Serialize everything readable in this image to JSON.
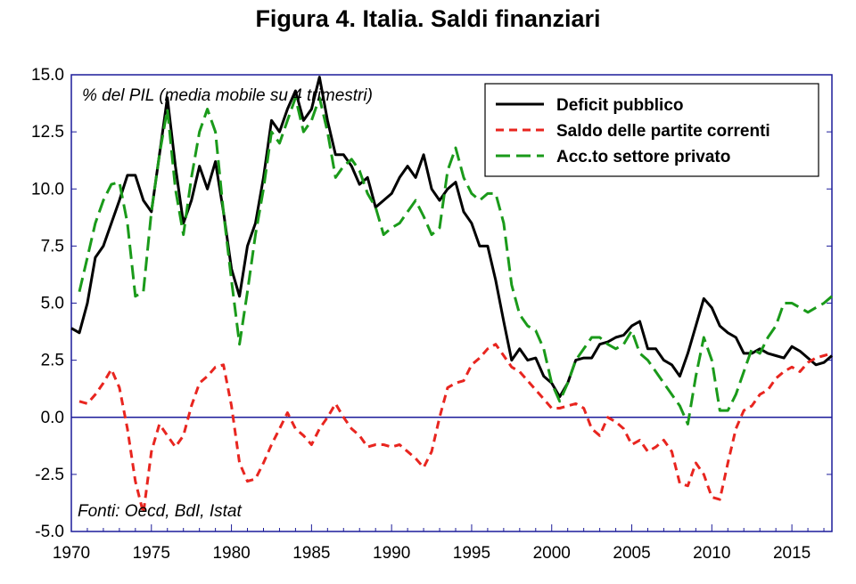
{
  "title": "Figura 4. Italia. Saldi finanziari",
  "note": "% del PIL (media mobile su 4 trimestri)",
  "source": "Fonti: Oecd, BdI, Istat",
  "colors": {
    "deficit": "#000000",
    "current_account": "#e8251f",
    "private": "#1a9a1a",
    "zero_line": "#1c1c9a",
    "frame": "#1c1c9a"
  },
  "chart_data": {
    "type": "line",
    "title": "Figura 4. Italia. Saldi finanziari",
    "xlabel": "",
    "ylabel": "% del PIL (media mobile su 4 trimestri)",
    "xlim": [
      1970,
      2017.5
    ],
    "ylim": [
      -5.0,
      15.0
    ],
    "x_ticks": [
      "1970",
      "1975",
      "1980",
      "1985",
      "1990",
      "1995",
      "2000",
      "2005",
      "2010",
      "2015"
    ],
    "y_ticks": [
      "15.0",
      "12.5",
      "10.0",
      "7.5",
      "5.0",
      "2.5",
      "0.0",
      "-2.5",
      "-5.0"
    ],
    "legend_position": "top-right",
    "grid": false,
    "series": [
      {
        "name": "Deficit pubblico",
        "style": "solid",
        "x": [
          1970.0,
          1970.5,
          1971.0,
          1971.5,
          1972.0,
          1972.5,
          1973.0,
          1973.5,
          1974.0,
          1974.5,
          1975.0,
          1975.5,
          1976.0,
          1976.5,
          1977.0,
          1977.5,
          1978.0,
          1978.5,
          1979.0,
          1979.5,
          1980.0,
          1980.5,
          1981.0,
          1981.5,
          1982.0,
          1982.5,
          1983.0,
          1983.5,
          1984.0,
          1984.5,
          1985.0,
          1985.5,
          1986.0,
          1986.5,
          1987.0,
          1987.5,
          1988.0,
          1988.5,
          1989.0,
          1989.5,
          1990.0,
          1990.5,
          1991.0,
          1991.5,
          1992.0,
          1992.5,
          1993.0,
          1993.5,
          1994.0,
          1994.5,
          1995.0,
          1995.5,
          1996.0,
          1996.5,
          1997.0,
          1997.5,
          1998.0,
          1998.5,
          1999.0,
          1999.5,
          2000.0,
          2000.5,
          2001.0,
          2001.5,
          2002.0,
          2002.5,
          2003.0,
          2003.5,
          2004.0,
          2004.5,
          2005.0,
          2005.5,
          2006.0,
          2006.5,
          2007.0,
          2007.5,
          2008.0,
          2008.5,
          2009.0,
          2009.5,
          2010.0,
          2010.5,
          2011.0,
          2011.5,
          2012.0,
          2012.5,
          2013.0,
          2013.5,
          2014.0,
          2014.5,
          2015.0,
          2015.5,
          2016.0,
          2016.5,
          2017.0,
          2017.5
        ],
        "y": [
          3.9,
          3.7,
          5.0,
          7.0,
          7.5,
          8.5,
          9.5,
          10.6,
          10.6,
          9.5,
          9.0,
          11.5,
          14.0,
          11.0,
          8.5,
          9.5,
          11.0,
          10.0,
          11.2,
          9.0,
          6.5,
          5.3,
          7.5,
          8.5,
          10.5,
          13.0,
          12.5,
          13.5,
          14.3,
          13.0,
          13.5,
          14.9,
          13.0,
          11.5,
          11.5,
          11.0,
          10.2,
          10.5,
          9.2,
          9.5,
          9.8,
          10.5,
          11.0,
          10.5,
          11.5,
          10.0,
          9.5,
          10.0,
          10.3,
          9.0,
          8.5,
          7.5,
          7.5,
          6.0,
          4.2,
          2.5,
          3.0,
          2.5,
          2.6,
          1.8,
          1.5,
          0.9,
          1.5,
          2.5,
          2.6,
          2.6,
          3.2,
          3.3,
          3.5,
          3.6,
          4.0,
          4.2,
          3.0,
          3.0,
          2.5,
          2.3,
          1.8,
          2.8,
          4.0,
          5.2,
          4.8,
          4.0,
          3.7,
          3.5,
          2.8,
          2.8,
          3.0,
          2.8,
          2.7,
          2.6,
          3.1,
          2.9,
          2.6,
          2.3,
          2.4,
          2.7
        ]
      },
      {
        "name": "Saldo delle partite correnti",
        "style": "dash",
        "x": [
          1970.5,
          1971.0,
          1971.5,
          1972.0,
          1972.5,
          1973.0,
          1973.5,
          1974.0,
          1974.5,
          1975.0,
          1975.5,
          1976.0,
          1976.5,
          1977.0,
          1977.5,
          1978.0,
          1978.5,
          1979.0,
          1979.5,
          1980.0,
          1980.5,
          1981.0,
          1981.5,
          1982.0,
          1982.5,
          1983.0,
          1983.5,
          1984.0,
          1984.5,
          1985.0,
          1985.5,
          1986.0,
          1986.5,
          1987.0,
          1987.5,
          1988.0,
          1988.5,
          1989.0,
          1989.5,
          1990.0,
          1990.5,
          1991.0,
          1991.5,
          1992.0,
          1992.5,
          1993.0,
          1993.5,
          1994.0,
          1994.5,
          1995.0,
          1995.5,
          1996.0,
          1996.5,
          1997.0,
          1997.5,
          1998.0,
          1998.5,
          1999.0,
          1999.5,
          2000.0,
          2000.5,
          2001.0,
          2001.5,
          2002.0,
          2002.5,
          2003.0,
          2003.5,
          2004.0,
          2004.5,
          2005.0,
          2005.5,
          2006.0,
          2006.5,
          2007.0,
          2007.5,
          2008.0,
          2008.5,
          2009.0,
          2009.5,
          2010.0,
          2010.5,
          2011.0,
          2011.5,
          2012.0,
          2012.5,
          2013.0,
          2013.5,
          2014.0,
          2014.5,
          2015.0,
          2015.5,
          2016.0,
          2016.5,
          2017.0,
          2017.5
        ],
        "y": [
          0.7,
          0.6,
          1.0,
          1.5,
          2.1,
          1.3,
          -0.5,
          -2.8,
          -4.2,
          -1.5,
          -0.3,
          -0.8,
          -1.3,
          -0.8,
          0.5,
          1.5,
          1.8,
          2.2,
          2.3,
          0.5,
          -2.0,
          -2.8,
          -2.7,
          -2.0,
          -1.2,
          -0.5,
          0.2,
          -0.5,
          -0.8,
          -1.2,
          -0.5,
          0.0,
          0.6,
          0.0,
          -0.5,
          -0.8,
          -1.3,
          -1.2,
          -1.2,
          -1.3,
          -1.2,
          -1.5,
          -1.8,
          -2.2,
          -1.5,
          0.0,
          1.3,
          1.5,
          1.6,
          2.3,
          2.6,
          3.0,
          3.2,
          2.7,
          2.2,
          2.0,
          1.6,
          1.2,
          0.8,
          0.4,
          0.4,
          0.5,
          0.6,
          0.4,
          -0.5,
          -0.8,
          0.0,
          -0.2,
          -0.5,
          -1.2,
          -1.0,
          -1.5,
          -1.3,
          -1.0,
          -1.5,
          -2.9,
          -3.0,
          -2.0,
          -2.5,
          -3.5,
          -3.6,
          -2.0,
          -0.5,
          0.3,
          0.5,
          1.0,
          1.2,
          1.7,
          2.0,
          2.2,
          2.0,
          2.4,
          2.6,
          2.7,
          2.8
        ]
      },
      {
        "name": "Acc.to settore privato",
        "style": "longdash",
        "x": [
          1970.5,
          1971.0,
          1971.5,
          1972.0,
          1972.5,
          1973.0,
          1973.5,
          1974.0,
          1974.5,
          1975.0,
          1975.5,
          1976.0,
          1976.5,
          1977.0,
          1977.5,
          1978.0,
          1978.5,
          1979.0,
          1979.5,
          1980.0,
          1980.5,
          1981.0,
          1981.5,
          1982.0,
          1982.5,
          1983.0,
          1983.5,
          1984.0,
          1984.5,
          1985.0,
          1985.5,
          1986.0,
          1986.5,
          1987.0,
          1987.5,
          1988.0,
          1988.5,
          1989.0,
          1989.5,
          1990.0,
          1990.5,
          1991.0,
          1991.5,
          1992.0,
          1992.5,
          1993.0,
          1993.5,
          1994.0,
          1994.5,
          1995.0,
          1995.5,
          1996.0,
          1996.5,
          1997.0,
          1997.5,
          1998.0,
          1998.5,
          1999.0,
          1999.5,
          2000.0,
          2000.5,
          2001.0,
          2001.5,
          2002.0,
          2002.5,
          2003.0,
          2003.5,
          2004.0,
          2004.5,
          2005.0,
          2005.5,
          2006.0,
          2006.5,
          2007.0,
          2007.5,
          2008.0,
          2008.5,
          2009.0,
          2009.5,
          2010.0,
          2010.5,
          2011.0,
          2011.5,
          2012.0,
          2012.5,
          2013.0,
          2013.5,
          2014.0,
          2014.5,
          2015.0,
          2015.5,
          2016.0,
          2016.5,
          2017.0,
          2017.5
        ],
        "y": [
          5.5,
          7.0,
          8.5,
          9.5,
          10.2,
          10.3,
          8.5,
          5.3,
          5.5,
          9.0,
          11.5,
          13.5,
          10.0,
          8.0,
          10.5,
          12.5,
          13.5,
          12.5,
          9.0,
          6.0,
          3.2,
          5.5,
          8.0,
          10.0,
          12.5,
          12.0,
          13.0,
          14.0,
          12.5,
          13.0,
          14.0,
          12.5,
          10.5,
          11.0,
          11.3,
          10.8,
          9.8,
          9.2,
          8.0,
          8.3,
          8.5,
          9.0,
          9.5,
          8.8,
          8.0,
          8.3,
          10.8,
          11.8,
          10.5,
          9.8,
          9.5,
          9.8,
          9.8,
          8.5,
          5.8,
          4.5,
          4.0,
          3.8,
          3.0,
          1.5,
          0.7,
          1.5,
          2.5,
          3.0,
          3.5,
          3.5,
          3.2,
          3.0,
          3.2,
          3.8,
          2.8,
          2.5,
          2.0,
          1.5,
          1.0,
          0.5,
          -0.3,
          1.8,
          3.5,
          2.5,
          0.3,
          0.3,
          1.0,
          2.0,
          3.0,
          2.8,
          3.5,
          4.0,
          5.0,
          5.0,
          4.8,
          4.6,
          4.8,
          5.0,
          5.3
        ]
      }
    ]
  }
}
